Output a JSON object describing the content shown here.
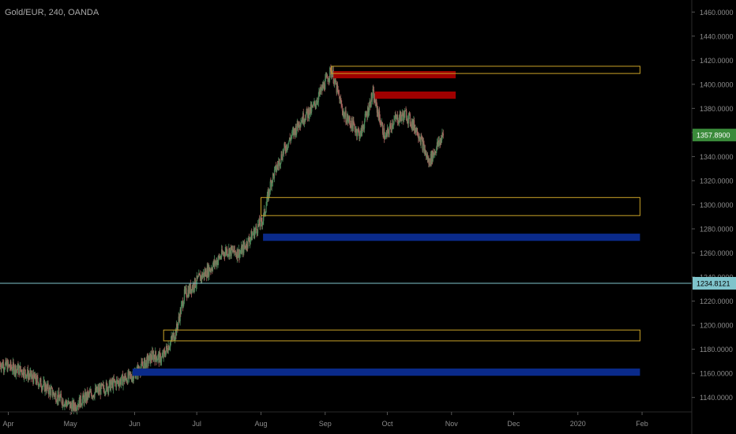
{
  "header": {
    "symbol_title": "Gold/EUR, 240, OANDA"
  },
  "chart_data": {
    "type": "candlestick",
    "title": "Gold/EUR, 240, OANDA",
    "ylim": [
      1128,
      1470
    ],
    "y_ticks": [
      "1140.0000",
      "1160.0000",
      "1180.0000",
      "1200.0000",
      "1220.0000",
      "1240.0000",
      "1260.0000",
      "1280.0000",
      "1300.0000",
      "1320.0000",
      "1340.0000",
      "1360.0000",
      "1380.0000",
      "1400.0000",
      "1420.0000",
      "1440.0000",
      "1460.0000"
    ],
    "x_ticks": [
      "Apr",
      "May",
      "Jun",
      "Jul",
      "Aug",
      "Sep",
      "Oct",
      "Nov",
      "Dec",
      "2020",
      "Feb"
    ],
    "x_range": [
      "2019-03-28",
      "2020-02-25"
    ],
    "price_series": [
      {
        "date": "2019-03-28",
        "close": 1168
      },
      {
        "date": "2019-04-08",
        "close": 1162
      },
      {
        "date": "2019-04-18",
        "close": 1150
      },
      {
        "date": "2019-04-25",
        "close": 1140
      },
      {
        "date": "2019-05-02",
        "close": 1132
      },
      {
        "date": "2019-05-10",
        "close": 1142
      },
      {
        "date": "2019-05-20",
        "close": 1150
      },
      {
        "date": "2019-05-31",
        "close": 1158
      },
      {
        "date": "2019-06-10",
        "close": 1175
      },
      {
        "date": "2019-06-14",
        "close": 1172
      },
      {
        "date": "2019-06-21",
        "close": 1195
      },
      {
        "date": "2019-06-25",
        "close": 1225
      },
      {
        "date": "2019-07-03",
        "close": 1240
      },
      {
        "date": "2019-07-08",
        "close": 1248
      },
      {
        "date": "2019-07-15",
        "close": 1262
      },
      {
        "date": "2019-07-22",
        "close": 1260
      },
      {
        "date": "2019-07-29",
        "close": 1278
      },
      {
        "date": "2019-08-02",
        "close": 1288
      },
      {
        "date": "2019-08-06",
        "close": 1320
      },
      {
        "date": "2019-08-12",
        "close": 1345
      },
      {
        "date": "2019-08-20",
        "close": 1370
      },
      {
        "date": "2019-08-26",
        "close": 1380
      },
      {
        "date": "2019-09-04",
        "close": 1412
      },
      {
        "date": "2019-09-10",
        "close": 1375
      },
      {
        "date": "2019-09-18",
        "close": 1358
      },
      {
        "date": "2019-09-24",
        "close": 1392
      },
      {
        "date": "2019-09-30",
        "close": 1355
      },
      {
        "date": "2019-10-04",
        "close": 1370
      },
      {
        "date": "2019-10-10",
        "close": 1375
      },
      {
        "date": "2019-10-16",
        "close": 1360
      },
      {
        "date": "2019-10-21",
        "close": 1335
      },
      {
        "date": "2019-10-24",
        "close": 1345
      },
      {
        "date": "2019-10-28",
        "close": 1358
      }
    ],
    "supply_zones_red": [
      {
        "x_start": "2019-09-05",
        "x_end": "2019-11-03",
        "y_low": 1405,
        "y_high": 1411
      },
      {
        "x_start": "2019-09-25",
        "x_end": "2019-11-03",
        "y_low": 1388,
        "y_high": 1394
      }
    ],
    "demand_zones_blue": [
      {
        "x_start": "2019-08-02",
        "x_end": "2020-01-31",
        "y_low": 1270,
        "y_high": 1276
      },
      {
        "x_start": "2019-05-31",
        "x_end": "2020-01-31",
        "y_low": 1158,
        "y_high": 1164
      }
    ],
    "outlined_zones": [
      {
        "x_start": "2019-09-04",
        "x_end": "2020-01-31",
        "y_low": 1409,
        "y_high": 1415
      },
      {
        "x_start": "2019-08-01",
        "x_end": "2020-01-31",
        "y_low": 1291,
        "y_high": 1306
      },
      {
        "x_start": "2019-06-15",
        "x_end": "2020-01-31",
        "y_low": 1187,
        "y_high": 1196
      }
    ],
    "horizontal_line": {
      "value": 1234.8121,
      "label": "1234.8121"
    },
    "last_price": {
      "value": 1357.89,
      "label": "1357.8900"
    },
    "colors": {
      "background": "#000000",
      "axis_text": "#8c8c8c",
      "candle_up": "#4a8a5a",
      "candle_down": "#a8655f",
      "red_zone": "#a00000",
      "blue_zone": "#0a2a8a",
      "outline": "#c9a227",
      "hline": "#7fc4cc",
      "last_price_bg": "#3a8a3a"
    }
  }
}
